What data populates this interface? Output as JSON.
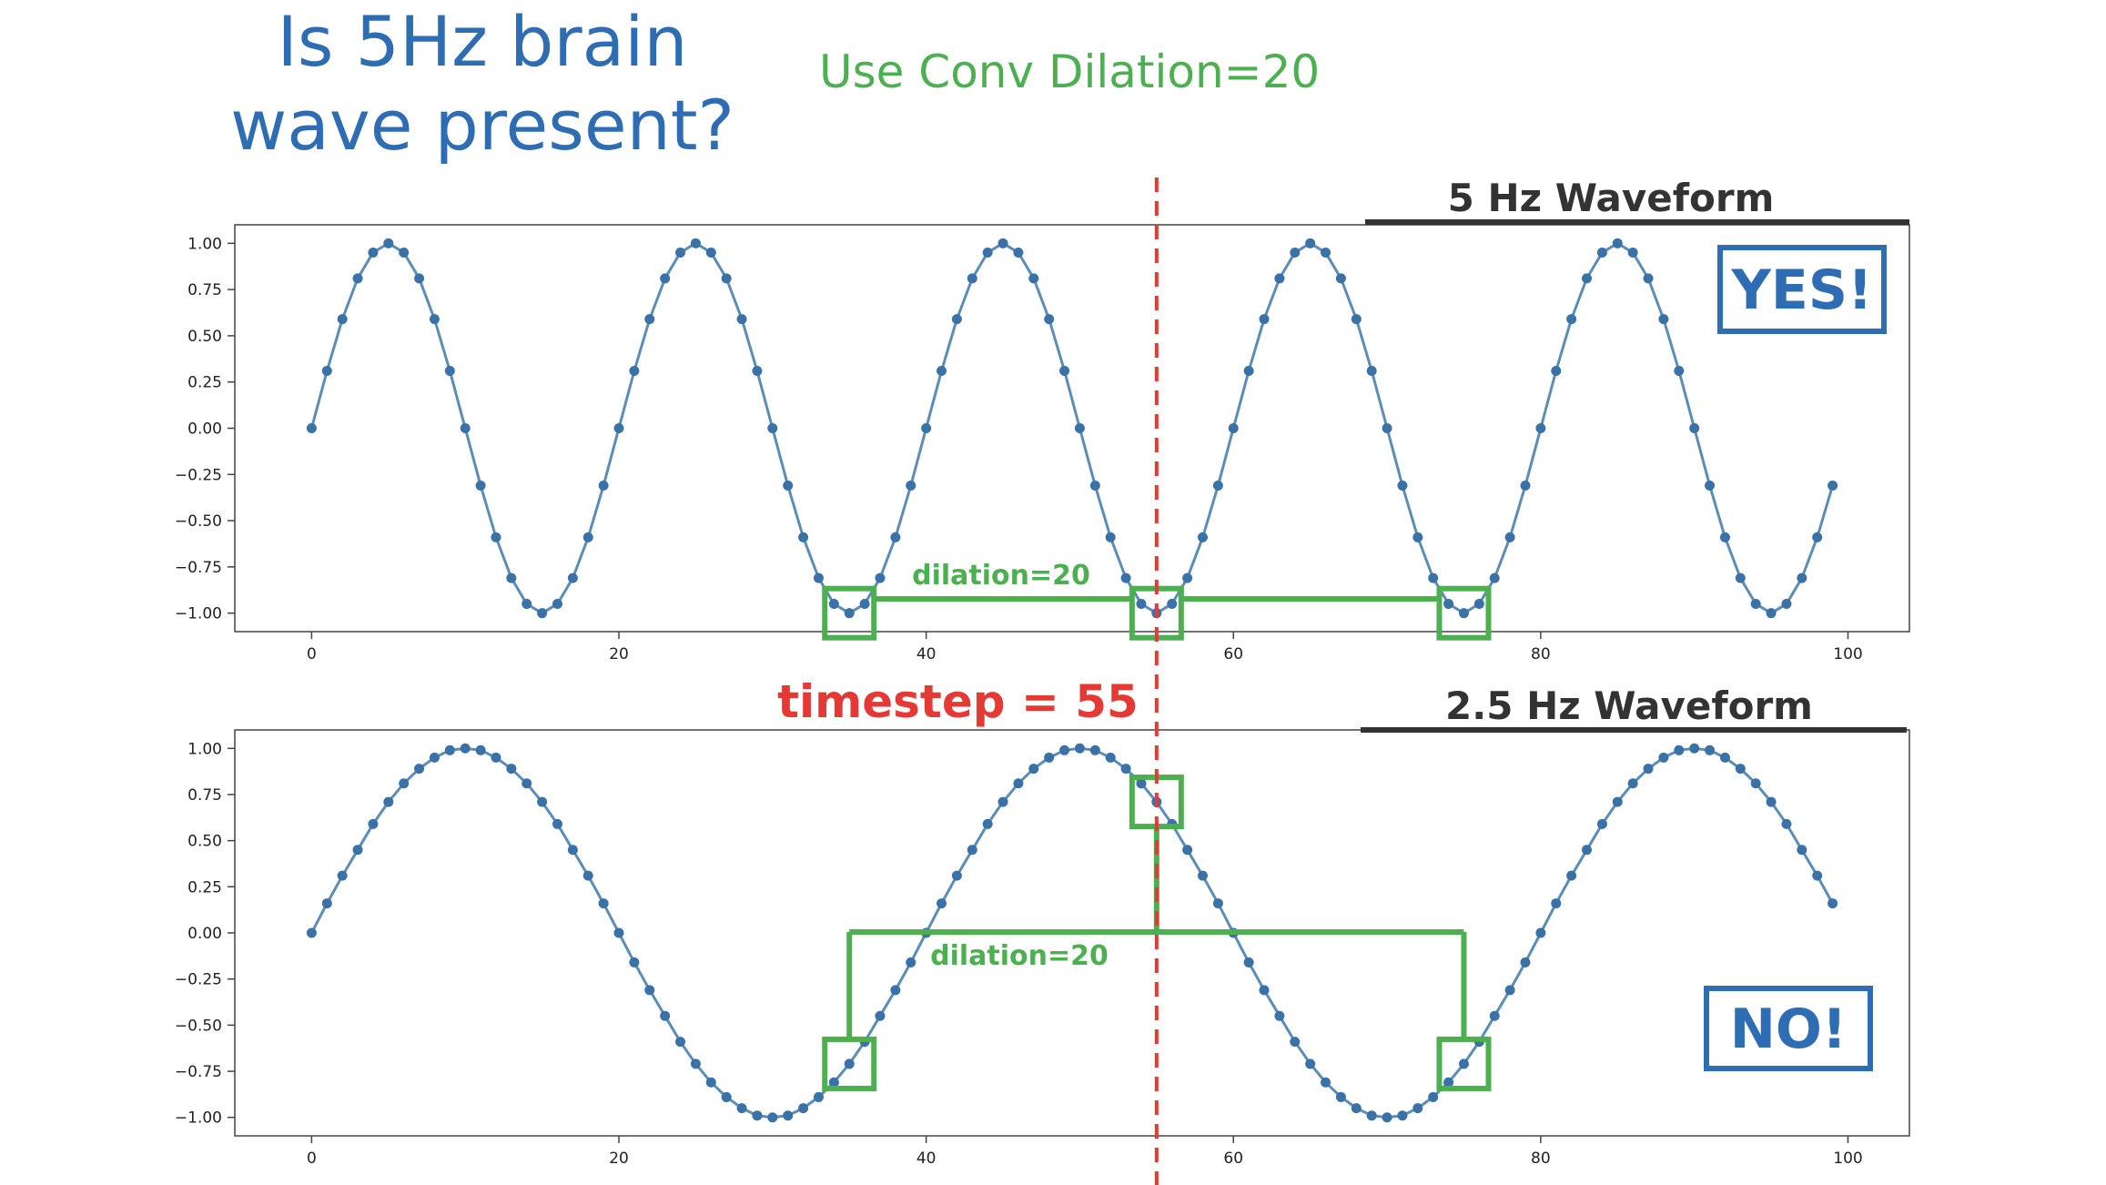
{
  "headline": {
    "line1": "Is 5Hz brain",
    "line2": "wave present?"
  },
  "subtitle": "Use Conv Dilation=20",
  "timestep_label": "timestep = 55",
  "colors": {
    "line": "#5b8db8",
    "marker": "#3a72a8",
    "annotation_green": "#4caf50",
    "dashed_red": "#e53935",
    "answer_blue": "#2e6db4",
    "title_dark": "#333333"
  },
  "chart_data": [
    {
      "type": "line",
      "title": "5 Hz Waveform",
      "answer": "YES!",
      "annotation": "dilation=20",
      "highlight_x": [
        35,
        55,
        75
      ],
      "x": [
        0,
        1,
        2,
        3,
        4,
        5,
        6,
        7,
        8,
        9,
        10,
        11,
        12,
        13,
        14,
        15,
        16,
        17,
        18,
        19,
        20,
        21,
        22,
        23,
        24,
        25,
        26,
        27,
        28,
        29,
        30,
        31,
        32,
        33,
        34,
        35,
        36,
        37,
        38,
        39,
        40,
        41,
        42,
        43,
        44,
        45,
        46,
        47,
        48,
        49,
        50,
        51,
        52,
        53,
        54,
        55,
        56,
        57,
        58,
        59,
        60,
        61,
        62,
        63,
        64,
        65,
        66,
        67,
        68,
        69,
        70,
        71,
        72,
        73,
        74,
        75,
        76,
        77,
        78,
        79,
        80,
        81,
        82,
        83,
        84,
        85,
        86,
        87,
        88,
        89,
        90,
        91,
        92,
        93,
        94,
        95,
        96,
        97,
        98,
        99
      ],
      "series": [
        {
          "values": [
            0.0,
            0.31,
            0.59,
            0.81,
            0.95,
            1.0,
            0.95,
            0.81,
            0.59,
            0.31,
            0.0,
            -0.31,
            -0.59,
            -0.81,
            -0.95,
            -1.0,
            -0.95,
            -0.81,
            -0.59,
            -0.31,
            0.0,
            0.31,
            0.59,
            0.81,
            0.95,
            1.0,
            0.95,
            0.81,
            0.59,
            0.31,
            0.0,
            -0.31,
            -0.59,
            -0.81,
            -0.95,
            -1.0,
            -0.95,
            -0.81,
            -0.59,
            -0.31,
            0.0,
            0.31,
            0.59,
            0.81,
            0.95,
            1.0,
            0.95,
            0.81,
            0.59,
            0.31,
            0.0,
            -0.31,
            -0.59,
            -0.81,
            -0.95,
            -1.0,
            -0.95,
            -0.81,
            -0.59,
            -0.31,
            0.0,
            0.31,
            0.59,
            0.81,
            0.95,
            1.0,
            0.95,
            0.81,
            0.59,
            0.31,
            0.0,
            -0.31,
            -0.59,
            -0.81,
            -0.95,
            -1.0,
            -0.95,
            -0.81,
            -0.59,
            -0.31,
            0.0,
            0.31,
            0.59,
            0.81,
            0.95,
            1.0,
            0.95,
            0.81,
            0.59,
            0.31,
            0.0,
            -0.31,
            -0.59,
            -0.81,
            -0.95,
            -1.0,
            -0.95,
            -0.81,
            -0.59,
            -0.31
          ]
        }
      ],
      "xlim": [
        -5,
        104
      ],
      "ylim": [
        -1.1,
        1.1
      ],
      "xticks": [
        0,
        20,
        40,
        60,
        80,
        100
      ],
      "yticks": [
        1.0,
        0.75,
        0.5,
        0.25,
        0.0,
        -0.25,
        -0.5,
        -0.75,
        -1.0
      ],
      "xtick_labels": [
        "0",
        "20",
        "40",
        "60",
        "80",
        "100"
      ],
      "ytick_labels": [
        "1.00",
        "0.75",
        "0.50",
        "0.25",
        "0.00",
        "−0.25",
        "−0.50",
        "−0.75",
        "−1.00"
      ],
      "grid": false
    },
    {
      "type": "line",
      "title": "2.5 Hz Waveform",
      "answer": "NO!",
      "annotation": "dilation=20",
      "highlight_x": [
        35,
        55,
        75
      ],
      "x": [
        0,
        1,
        2,
        3,
        4,
        5,
        6,
        7,
        8,
        9,
        10,
        11,
        12,
        13,
        14,
        15,
        16,
        17,
        18,
        19,
        20,
        21,
        22,
        23,
        24,
        25,
        26,
        27,
        28,
        29,
        30,
        31,
        32,
        33,
        34,
        35,
        36,
        37,
        38,
        39,
        40,
        41,
        42,
        43,
        44,
        45,
        46,
        47,
        48,
        49,
        50,
        51,
        52,
        53,
        54,
        55,
        56,
        57,
        58,
        59,
        60,
        61,
        62,
        63,
        64,
        65,
        66,
        67,
        68,
        69,
        70,
        71,
        72,
        73,
        74,
        75,
        76,
        77,
        78,
        79,
        80,
        81,
        82,
        83,
        84,
        85,
        86,
        87,
        88,
        89,
        90,
        91,
        92,
        93,
        94,
        95,
        96,
        97,
        98,
        99
      ],
      "series": [
        {
          "values": [
            0.0,
            0.16,
            0.31,
            0.45,
            0.59,
            0.71,
            0.81,
            0.89,
            0.95,
            0.99,
            1.0,
            0.99,
            0.95,
            0.89,
            0.81,
            0.71,
            0.59,
            0.45,
            0.31,
            0.16,
            0.0,
            -0.16,
            -0.31,
            -0.45,
            -0.59,
            -0.71,
            -0.81,
            -0.89,
            -0.95,
            -0.99,
            -1.0,
            -0.99,
            -0.95,
            -0.89,
            -0.81,
            -0.71,
            -0.59,
            -0.45,
            -0.31,
            -0.16,
            0.0,
            0.16,
            0.31,
            0.45,
            0.59,
            0.71,
            0.81,
            0.89,
            0.95,
            0.99,
            1.0,
            0.99,
            0.95,
            0.89,
            0.81,
            0.71,
            0.59,
            0.45,
            0.31,
            0.16,
            0.0,
            -0.16,
            -0.31,
            -0.45,
            -0.59,
            -0.71,
            -0.81,
            -0.89,
            -0.95,
            -0.99,
            -1.0,
            -0.99,
            -0.95,
            -0.89,
            -0.81,
            -0.71,
            -0.59,
            -0.45,
            -0.31,
            -0.16,
            0.0,
            0.16,
            0.31,
            0.45,
            0.59,
            0.71,
            0.81,
            0.89,
            0.95,
            0.99,
            1.0,
            0.99,
            0.95,
            0.89,
            0.81,
            0.71,
            0.59,
            0.45,
            0.31,
            0.16
          ]
        }
      ],
      "xlim": [
        -5,
        104
      ],
      "ylim": [
        -1.1,
        1.1
      ],
      "xticks": [
        0,
        20,
        40,
        60,
        80,
        100
      ],
      "yticks": [
        1.0,
        0.75,
        0.5,
        0.25,
        0.0,
        -0.25,
        -0.5,
        -0.75,
        -1.0
      ],
      "xtick_labels": [
        "0",
        "20",
        "40",
        "60",
        "80",
        "100"
      ],
      "ytick_labels": [
        "1.00",
        "0.75",
        "0.50",
        "0.25",
        "0.00",
        "−0.25",
        "−0.50",
        "−0.75",
        "−1.00"
      ],
      "grid": false
    }
  ],
  "timestep_x": 55
}
